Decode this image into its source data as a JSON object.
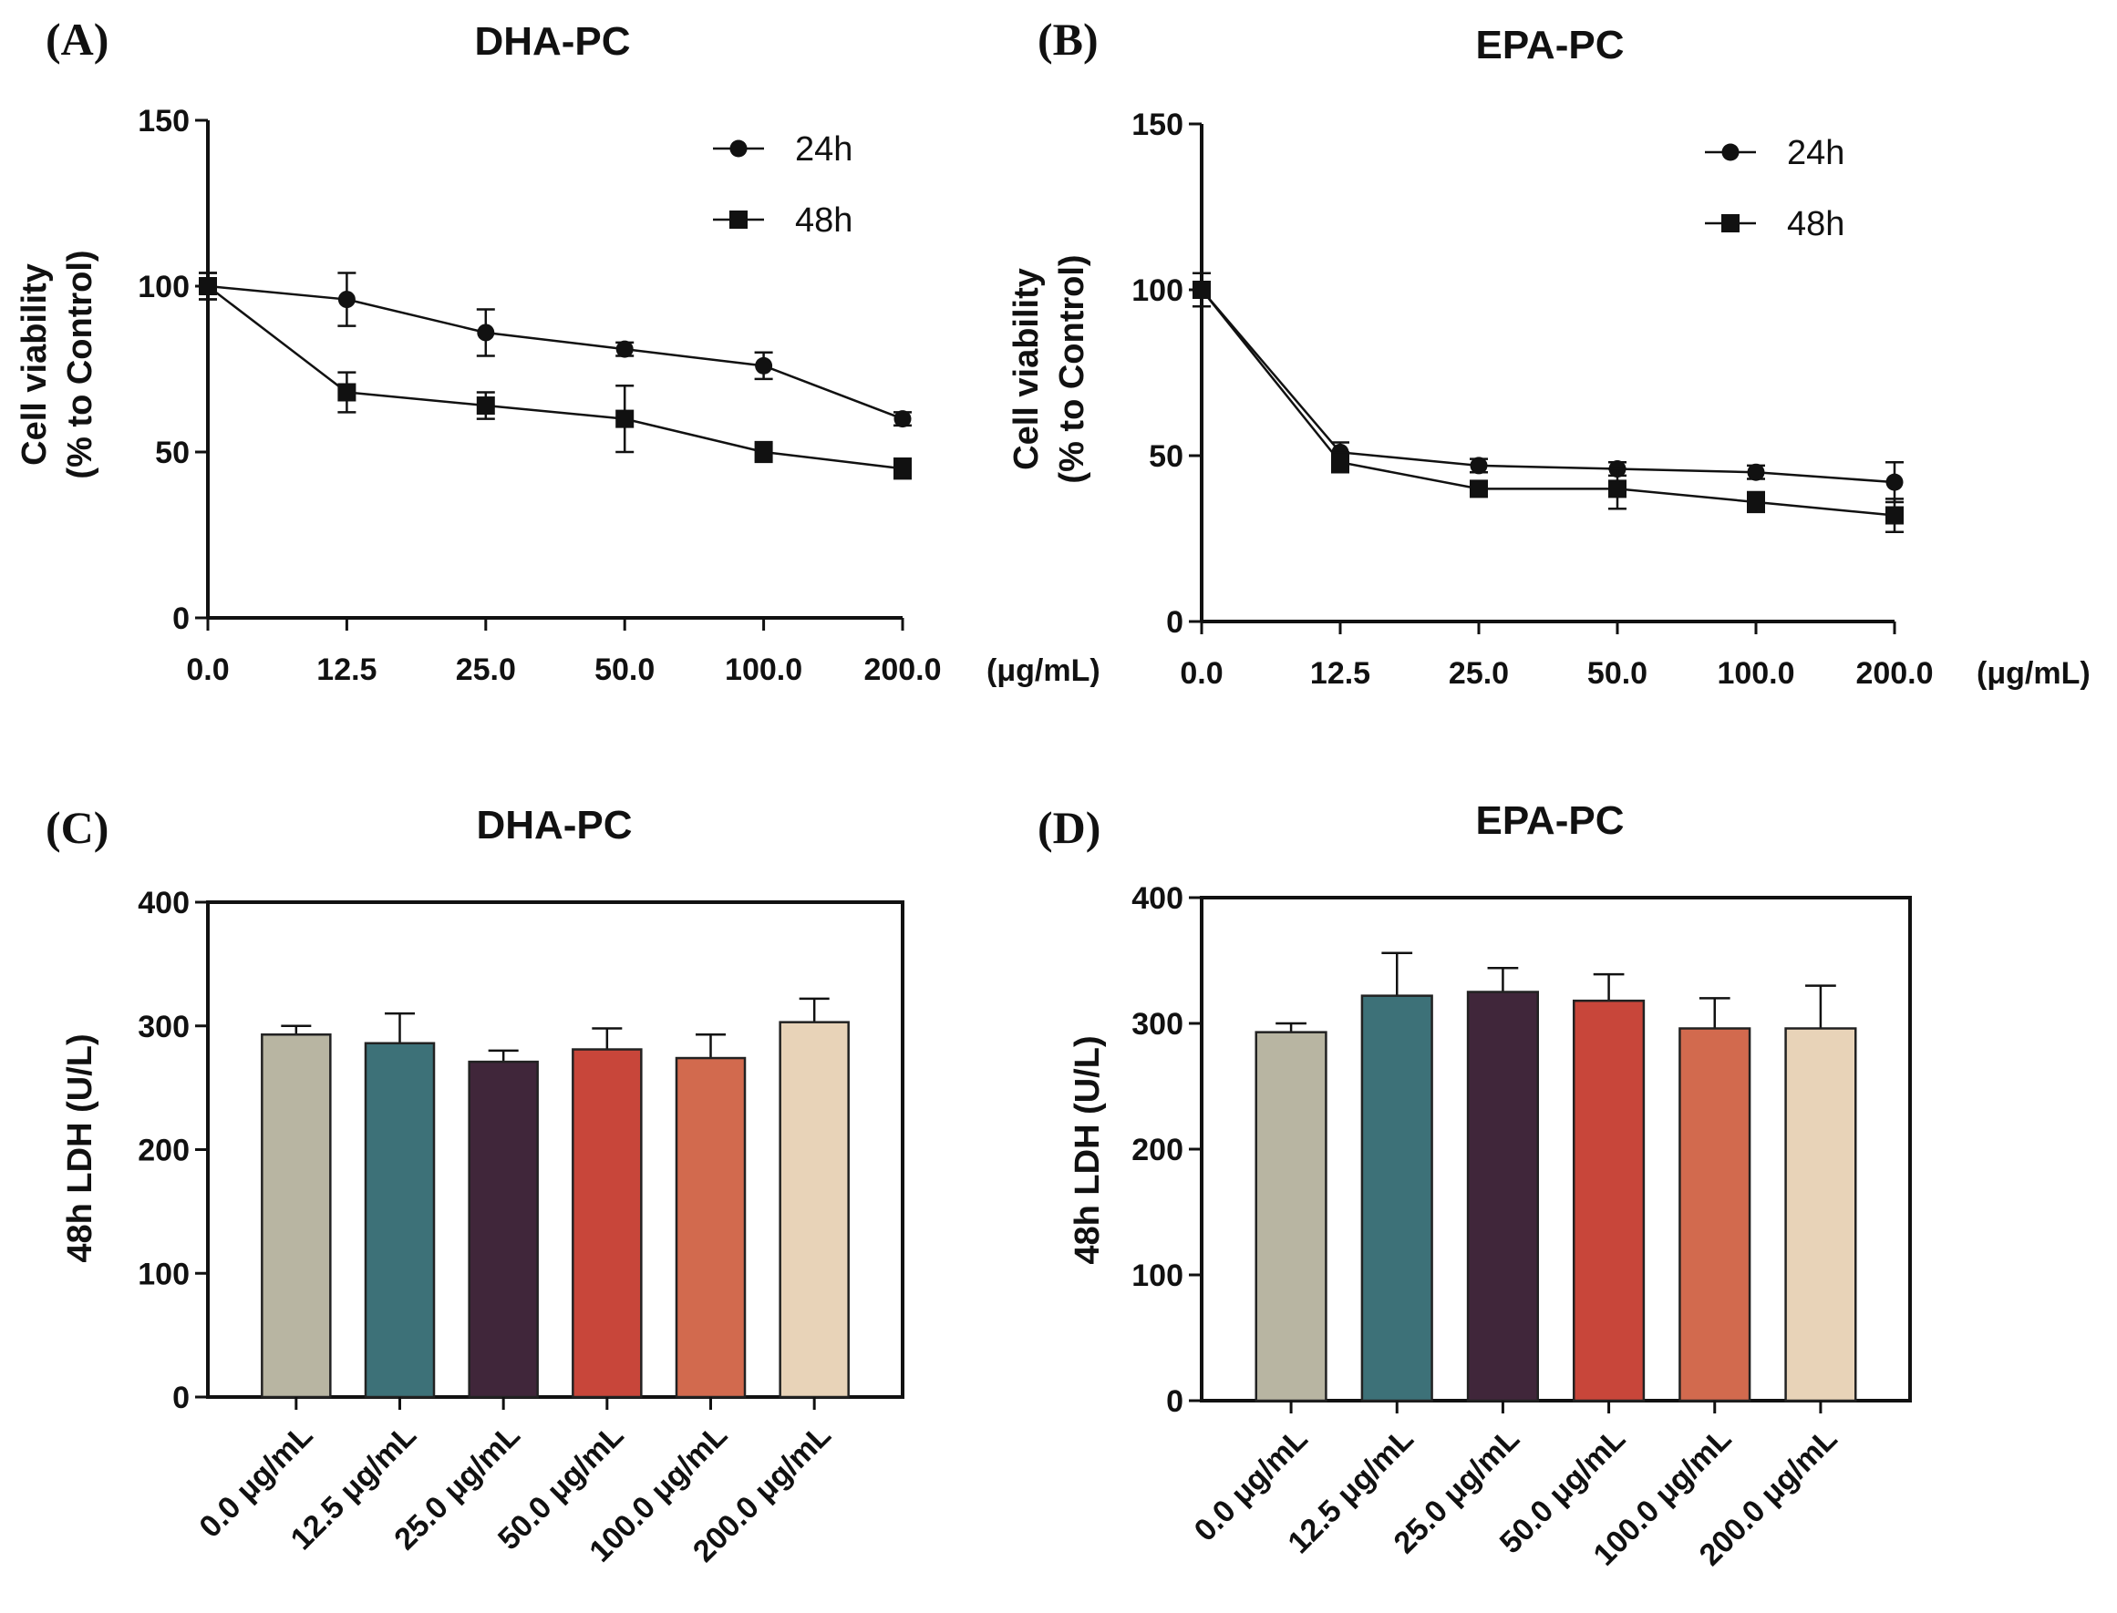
{
  "chart_data": [
    {
      "id": "A",
      "panel_label": "(A)",
      "type": "line",
      "title": "DHA-PC",
      "ylabel_line1": "Cell viability",
      "ylabel_line2": "(% to Control)",
      "xlabel": "",
      "x_unit": "(μg/mL)",
      "categories": [
        "0.0",
        "12.5",
        "25.0",
        "50.0",
        "100.0",
        "200.0"
      ],
      "ylim": [
        0,
        150
      ],
      "yticks": [
        0,
        50,
        100,
        150
      ],
      "legend_position": "top-right",
      "series": [
        {
          "name": "24h",
          "marker": "circle",
          "values": [
            100,
            96,
            86,
            81,
            76,
            60
          ],
          "errors": [
            4,
            8,
            7,
            2,
            4,
            2
          ]
        },
        {
          "name": "48h",
          "marker": "square",
          "values": [
            100,
            68,
            64,
            60,
            50,
            45
          ],
          "errors": [
            4,
            6,
            4,
            10,
            3,
            3
          ]
        }
      ]
    },
    {
      "id": "B",
      "panel_label": "(B)",
      "type": "line",
      "title": "EPA-PC",
      "ylabel_line1": "Cell viability",
      "ylabel_line2": "(% to Control)",
      "xlabel": "",
      "x_unit": "(μg/mL)",
      "categories": [
        "0.0",
        "12.5",
        "25.0",
        "50.0",
        "100.0",
        "200.0"
      ],
      "ylim": [
        0,
        150
      ],
      "yticks": [
        0,
        50,
        100,
        150
      ],
      "legend_position": "top-right",
      "series": [
        {
          "name": "24h",
          "marker": "circle",
          "values": [
            100,
            51,
            47,
            46,
            45,
            42
          ],
          "errors": [
            5,
            3,
            2,
            2,
            2,
            6
          ]
        },
        {
          "name": "48h",
          "marker": "square",
          "values": [
            100,
            48,
            40,
            40,
            36,
            32
          ],
          "errors": [
            5,
            3,
            2,
            6,
            3,
            5
          ]
        }
      ]
    },
    {
      "id": "C",
      "panel_label": "(C)",
      "type": "bar",
      "title": "DHA-PC",
      "ylabel": "48h LDH (U/L)",
      "xlabel": "",
      "categories": [
        "0.0 μg/mL",
        "12.5 μg/mL",
        "25.0 μg/mL",
        "50.0 μg/mL",
        "100.0 μg/mL",
        "200.0 μg/mL"
      ],
      "values": [
        293,
        286,
        271,
        281,
        274,
        303
      ],
      "errors": [
        7,
        24,
        9,
        17,
        19,
        19
      ],
      "colors": [
        "#b8b5a2",
        "#3d7178",
        "#40263a",
        "#c8463a",
        "#d26a4e",
        "#e8d3b8"
      ],
      "ylim": [
        0,
        400
      ],
      "yticks": [
        0,
        100,
        200,
        300,
        400
      ]
    },
    {
      "id": "D",
      "panel_label": "(D)",
      "type": "bar",
      "title": "EPA-PC",
      "ylabel": "48h LDH (U/L)",
      "xlabel": "",
      "categories": [
        "0.0 μg/mL",
        "12.5 μg/mL",
        "25.0 μg/mL",
        "50.0 μg/mL",
        "100.0 μg/mL",
        "200.0 μg/mL"
      ],
      "values": [
        293,
        322,
        325,
        318,
        296,
        296
      ],
      "errors": [
        7,
        34,
        19,
        21,
        24,
        34
      ],
      "colors": [
        "#b8b5a2",
        "#3d7178",
        "#40263a",
        "#c8463a",
        "#d26a4e",
        "#e8d3b8"
      ],
      "ylim": [
        0,
        400
      ],
      "yticks": [
        0,
        100,
        200,
        300,
        400
      ]
    }
  ]
}
